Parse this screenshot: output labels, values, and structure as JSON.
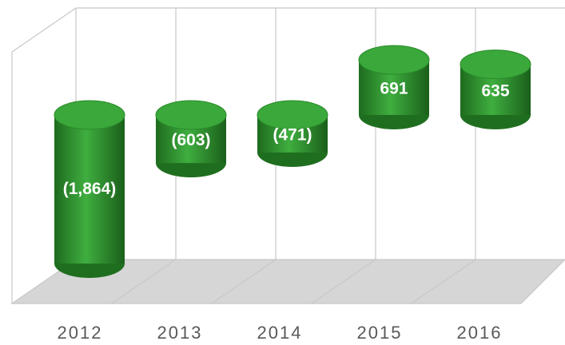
{
  "chart_data": {
    "type": "bar3d",
    "categories": [
      "2012",
      "2013",
      "2014",
      "2015",
      "2016"
    ],
    "values": [
      -1864,
      -603,
      -471,
      691,
      635
    ],
    "value_labels": [
      "(1,864)",
      "(603)",
      "(471)",
      "691",
      "635"
    ],
    "color": "#2e8b2e"
  }
}
